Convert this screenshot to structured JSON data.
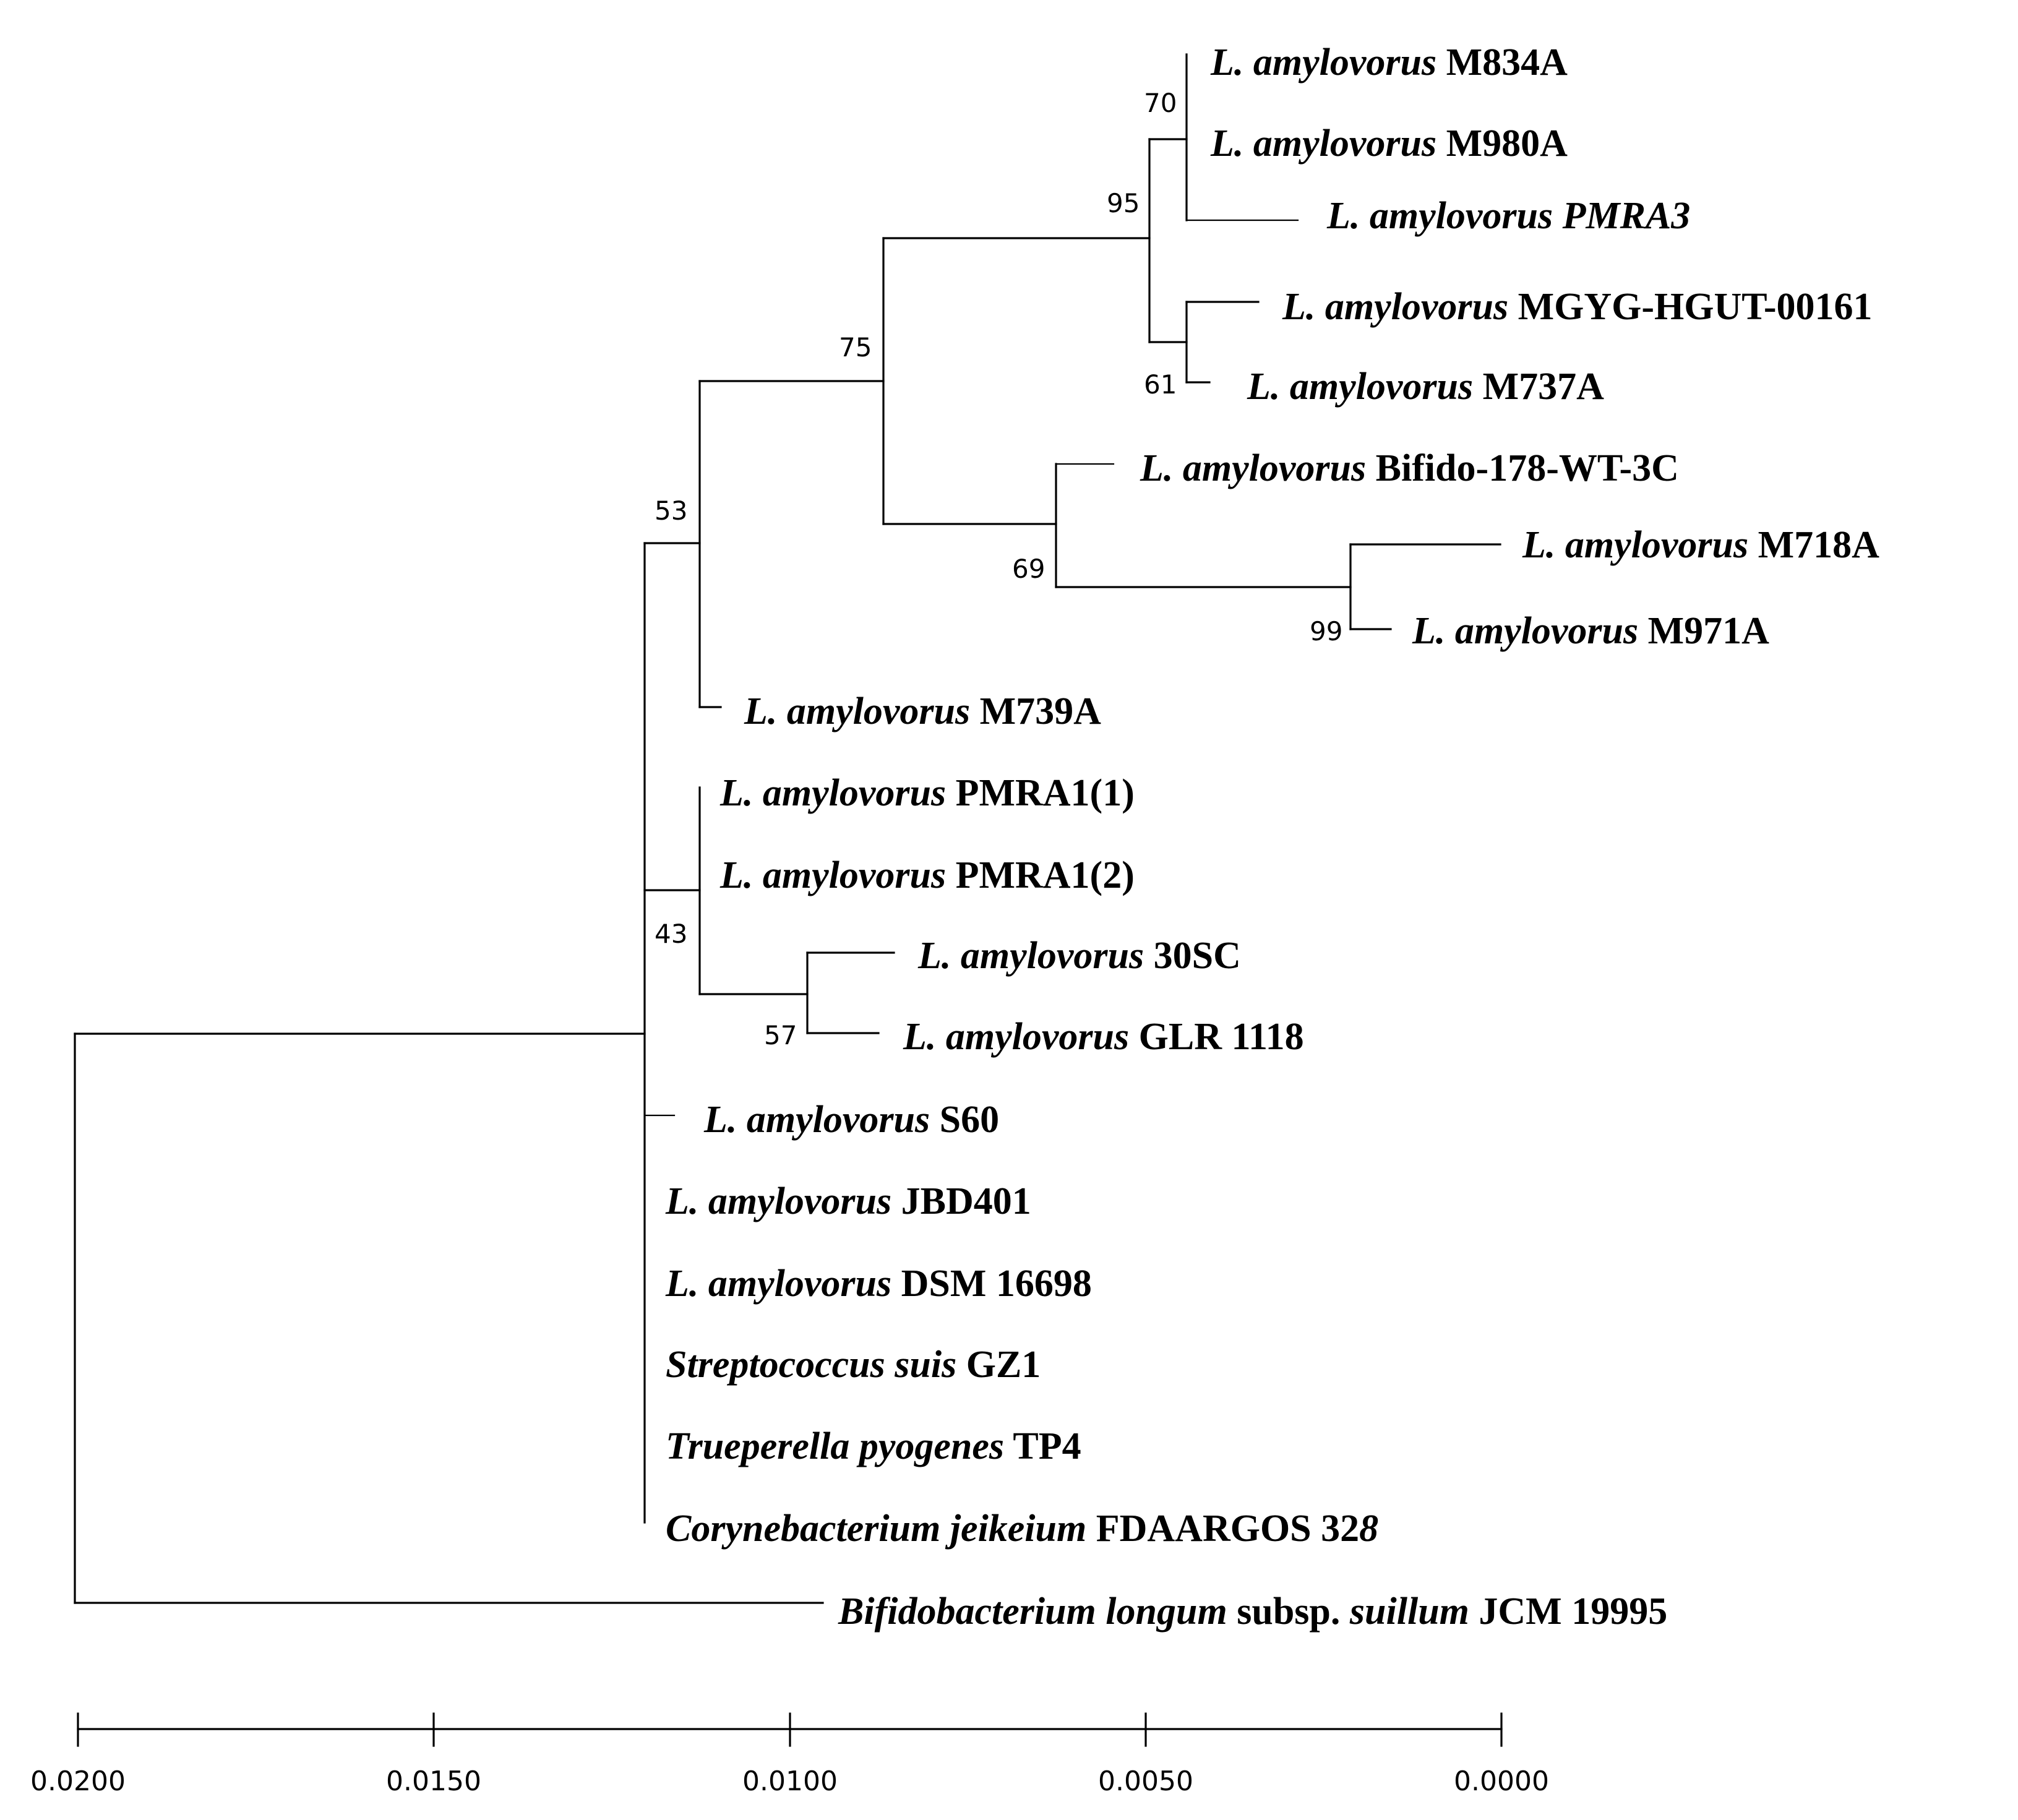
{
  "figure": {
    "type": "phylogenetic_tree",
    "scale_bar": {
      "ticks": [
        "0.0200",
        "0.0150",
        "0.0100",
        "0.0050",
        "0.0000"
      ]
    },
    "taxa": [
      {
        "id": "M834A",
        "parts": [
          {
            "text": "L. amylovorus",
            "italic": true
          },
          {
            "text": " M834A",
            "italic": false
          }
        ]
      },
      {
        "id": "M980A",
        "parts": [
          {
            "text": "L. amylovorus",
            "italic": true
          },
          {
            "text": " M980A",
            "italic": false
          }
        ]
      },
      {
        "id": "PMRA3",
        "parts": [
          {
            "text": "L. amylovorus PMRA3",
            "italic": true
          }
        ]
      },
      {
        "id": "MGYG",
        "parts": [
          {
            "text": "L. amylovorus",
            "italic": true
          },
          {
            "text": " MGYG-HGUT-00161",
            "italic": false
          }
        ]
      },
      {
        "id": "M737A",
        "parts": [
          {
            "text": "L. amylovorus",
            "italic": true
          },
          {
            "text": " M737A",
            "italic": false
          }
        ]
      },
      {
        "id": "Bifido178",
        "parts": [
          {
            "text": "L. amylovorus",
            "italic": true
          },
          {
            "text": " Bifido-178-WT-3C",
            "italic": false
          }
        ]
      },
      {
        "id": "M718A",
        "parts": [
          {
            "text": "L. amylovorus",
            "italic": true
          },
          {
            "text": " M718A",
            "italic": false
          }
        ]
      },
      {
        "id": "M971A",
        "parts": [
          {
            "text": "L. amylovorus",
            "italic": true
          },
          {
            "text": " M971A",
            "italic": false
          }
        ]
      },
      {
        "id": "M739A",
        "parts": [
          {
            "text": "L. amylovorus",
            "italic": true
          },
          {
            "text": " M739A",
            "italic": false
          }
        ]
      },
      {
        "id": "PMRA1_1",
        "parts": [
          {
            "text": "L. amylovorus",
            "italic": true
          },
          {
            "text": " PMRA1(1)",
            "italic": false
          }
        ]
      },
      {
        "id": "PMRA1_2",
        "parts": [
          {
            "text": "L. amylovorus",
            "italic": true
          },
          {
            "text": " PMRA1(2)",
            "italic": false
          }
        ]
      },
      {
        "id": "30SC",
        "parts": [
          {
            "text": "L. amylovorus",
            "italic": true
          },
          {
            "text": " 30SC",
            "italic": false
          }
        ]
      },
      {
        "id": "GLR1118",
        "parts": [
          {
            "text": "L. amylovorus",
            "italic": true
          },
          {
            "text": " GLR 1118",
            "italic": false
          }
        ]
      },
      {
        "id": "S60",
        "parts": [
          {
            "text": "L. amylovorus",
            "italic": true
          },
          {
            "text": " S60",
            "italic": false
          }
        ]
      },
      {
        "id": "JBD401",
        "parts": [
          {
            "text": "L. amylovorus",
            "italic": true
          },
          {
            "text": " JBD401",
            "italic": false
          }
        ]
      },
      {
        "id": "DSM16698",
        "parts": [
          {
            "text": "L. amylovorus",
            "italic": true
          },
          {
            "text": " DSM 16698",
            "italic": false
          }
        ]
      },
      {
        "id": "GZ1",
        "parts": [
          {
            "text": "Streptococcus suis",
            "italic": true
          },
          {
            "text": " GZ1",
            "italic": false
          }
        ]
      },
      {
        "id": "TP4",
        "parts": [
          {
            "text": "Trueperella pyogenes",
            "italic": true
          },
          {
            "text": " TP4",
            "italic": false
          }
        ]
      },
      {
        "id": "FDAARGOS",
        "parts": [
          {
            "text": "Corynebacterium jeikeium",
            "italic": true
          },
          {
            "text": " FDAARGOS 32",
            "italic": false
          },
          {
            "text": "8",
            "italic": true
          }
        ]
      },
      {
        "id": "JCM19995",
        "parts": [
          {
            "text": "Bifidobacterium longum",
            "italic": true
          },
          {
            "text": " subsp. ",
            "italic": false
          },
          {
            "text": "suillum",
            "italic": true
          },
          {
            "text": " JCM 19995",
            "italic": false
          }
        ]
      }
    ],
    "bootstrap": [
      {
        "node": "M834A_M980A",
        "value": "70"
      },
      {
        "node": "M834A_M980A_PMRA3_MGYG_M737A",
        "value": "95"
      },
      {
        "node": "MGYG_M737A",
        "value": "61"
      },
      {
        "node": "upper_clade",
        "value": "75"
      },
      {
        "node": "Bifido178_M718A_M971A",
        "value": "69"
      },
      {
        "node": "M718A_M971A",
        "value": "99"
      },
      {
        "node": "upper_clade_M739A",
        "value": "53"
      },
      {
        "node": "PMRA1_30SC_GLR1118",
        "value": "43"
      },
      {
        "node": "30SC_GLR1118",
        "value": "57"
      }
    ]
  }
}
